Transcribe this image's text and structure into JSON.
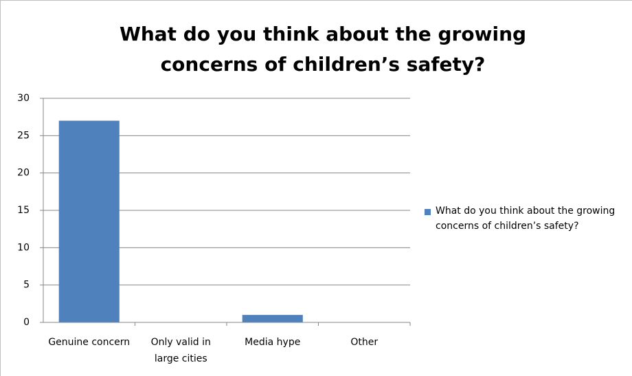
{
  "chart_data": {
    "type": "bar",
    "title": "What do you think about the growing concerns of children’s safety?",
    "categories": [
      "Genuine concern",
      "Only valid in large cities",
      "Media hype",
      "Other"
    ],
    "series": [
      {
        "name": "What do you think about the growing concerns of children’s safety?",
        "color": "#4f81bd",
        "values": [
          27,
          0,
          1,
          0
        ]
      }
    ],
    "ylim": [
      0,
      30
    ],
    "yticks": [
      0,
      5,
      10,
      15,
      20,
      25,
      30
    ],
    "grid": true,
    "legend": "right"
  }
}
